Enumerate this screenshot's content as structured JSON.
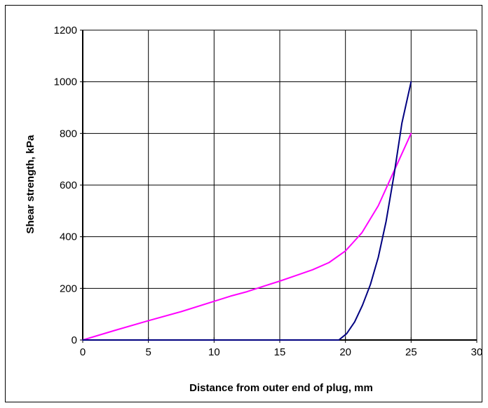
{
  "chart_data": {
    "type": "line",
    "title": "",
    "xlabel": "Distance from outer end of plug, mm",
    "ylabel": "Shear strength, kPa",
    "xlim": [
      0,
      30
    ],
    "ylim": [
      0,
      1200
    ],
    "x_ticks": [
      0,
      5,
      10,
      15,
      20,
      25,
      30
    ],
    "y_ticks": [
      0,
      200,
      400,
      600,
      800,
      1000,
      1200
    ],
    "x_tick_labels": [
      "0",
      "5",
      "10",
      "15",
      "20",
      "25",
      "30"
    ],
    "y_tick_labels": [
      "0",
      "200",
      "400",
      "600",
      "800",
      "1000",
      "1200"
    ],
    "grid": true,
    "legend": "none",
    "series": [
      {
        "color": "#ff00ff",
        "x": [
          0,
          2.5,
          5,
          7.5,
          10,
          11.25,
          12.5,
          13.75,
          15,
          16.25,
          17.5,
          18.75,
          20,
          21.25,
          22.5,
          23.75,
          25
        ],
        "y": [
          0,
          38,
          75,
          110,
          150,
          170,
          187,
          208,
          228,
          250,
          272,
          300,
          345,
          415,
          520,
          660,
          800
        ]
      },
      {
        "color": "#000080",
        "x": [
          0,
          11,
          19.5,
          20.1,
          20.7,
          21.3,
          21.9,
          22.5,
          23.1,
          23.7,
          24.3,
          25
        ],
        "y": [
          0,
          0,
          0,
          25,
          70,
          135,
          215,
          320,
          460,
          640,
          840,
          1000
        ]
      }
    ]
  }
}
